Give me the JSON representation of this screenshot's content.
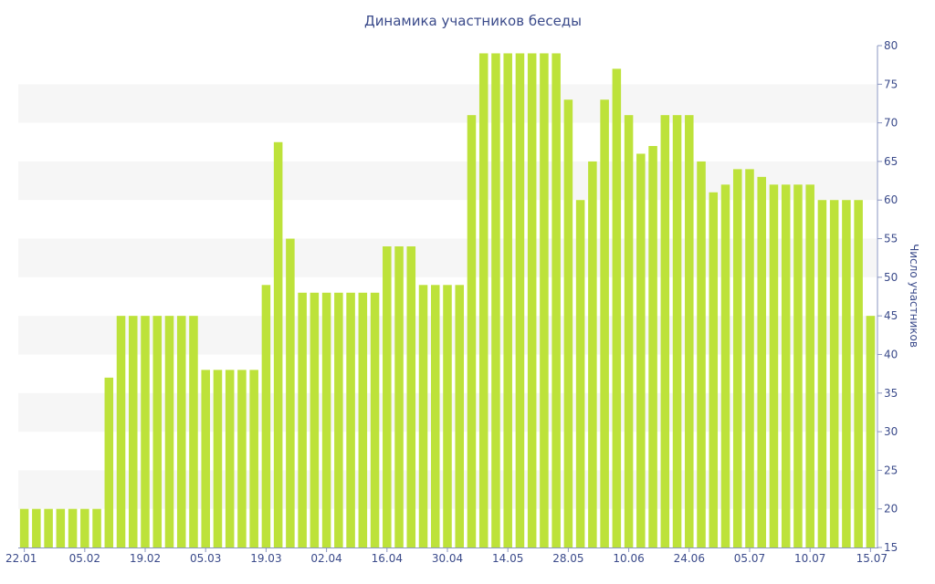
{
  "chart_data": {
    "type": "bar",
    "title": "Динамика участников беседы",
    "xlabel": "",
    "ylabel": "Число участников",
    "ylim": [
      15,
      80
    ],
    "yticks": [
      15,
      20,
      25,
      30,
      35,
      40,
      45,
      50,
      55,
      60,
      65,
      70,
      75,
      80
    ],
    "y_axis_side": "right",
    "grid": "alternating horizontal bands",
    "bar_color": "#bde23a",
    "band_color": "#f6f6f6",
    "text_color": "#3a4a8a",
    "x_tick_labels": [
      {
        "label": "22.01",
        "index": 0
      },
      {
        "label": "05.02",
        "index": 5
      },
      {
        "label": "19.02",
        "index": 10
      },
      {
        "label": "05.03",
        "index": 15
      },
      {
        "label": "19.03",
        "index": 20
      },
      {
        "label": "02.04",
        "index": 25
      },
      {
        "label": "16.04",
        "index": 30
      },
      {
        "label": "30.04",
        "index": 35
      },
      {
        "label": "14.05",
        "index": 40
      },
      {
        "label": "28.05",
        "index": 45
      },
      {
        "label": "10.06",
        "index": 50
      },
      {
        "label": "24.06",
        "index": 55
      },
      {
        "label": "05.07",
        "index": 60
      },
      {
        "label": "10.07",
        "index": 65
      },
      {
        "label": "15.07",
        "index": 70
      }
    ],
    "values": [
      20,
      20,
      20,
      20,
      20,
      20,
      20,
      37,
      45,
      45,
      45,
      45,
      45,
      45,
      45,
      38,
      38,
      38,
      38,
      38,
      49,
      67.5,
      55,
      48,
      48,
      48,
      48,
      48,
      48,
      48,
      54,
      54,
      54,
      49,
      49,
      49,
      49,
      71,
      79,
      79,
      79,
      79,
      79,
      79,
      79,
      73,
      60,
      65,
      73,
      77,
      71,
      66,
      67,
      71,
      71,
      71,
      65,
      61,
      62,
      64,
      64,
      63,
      62,
      62,
      62,
      62,
      60,
      60,
      60,
      60,
      45
    ]
  }
}
